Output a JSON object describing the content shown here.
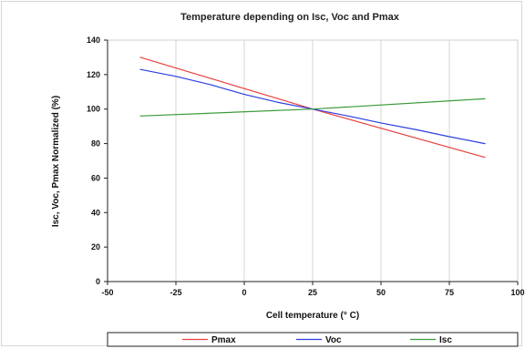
{
  "chart_data": {
    "type": "line",
    "title": "Temperature depending on Isc, Voc and Pmax",
    "xlabel": "Cell temperature (° C)",
    "ylabel": "Isc, Voc, Pmax Normalized (%)",
    "xlim": [
      -50,
      100
    ],
    "ylim": [
      0,
      140
    ],
    "xticks": [
      -50,
      -25,
      0,
      25,
      50,
      75,
      100
    ],
    "yticks": [
      0,
      20,
      40,
      60,
      80,
      100,
      120,
      140
    ],
    "grid": "vertical",
    "legend_position": "bottom",
    "series": [
      {
        "name": "Pmax",
        "color": "#e8423f",
        "points": [
          [
            -38,
            130
          ],
          [
            25,
            100
          ],
          [
            88,
            72
          ]
        ]
      },
      {
        "name": "Voc",
        "color": "#2d3fe0",
        "points": [
          [
            -38,
            123
          ],
          [
            -25,
            119
          ],
          [
            -12,
            114
          ],
          [
            0,
            108.5
          ],
          [
            12,
            104
          ],
          [
            25,
            100
          ],
          [
            38,
            96
          ],
          [
            50,
            92
          ],
          [
            63,
            88
          ],
          [
            75,
            84
          ],
          [
            88,
            80
          ]
        ]
      },
      {
        "name": "Isc",
        "color": "#3a9a3a",
        "points": [
          [
            -38,
            96
          ],
          [
            25,
            100
          ],
          [
            88,
            106
          ]
        ]
      }
    ]
  }
}
